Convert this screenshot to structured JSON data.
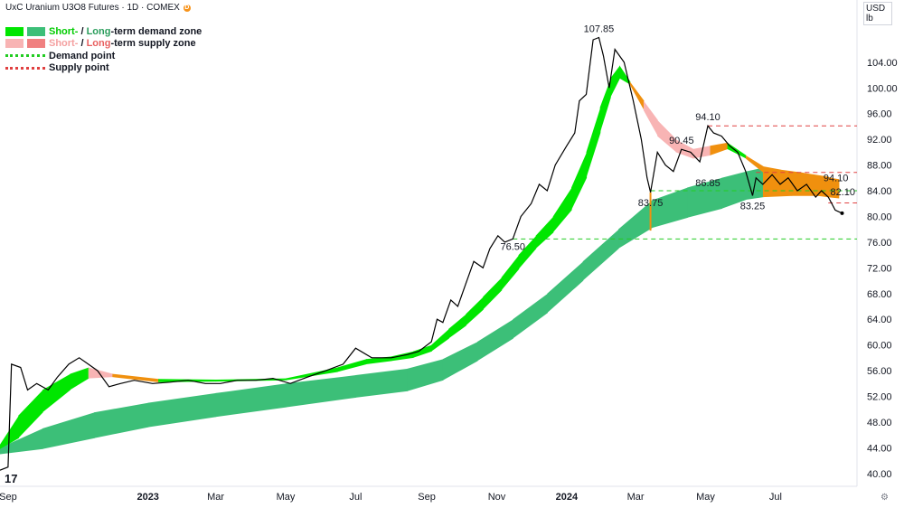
{
  "header": {
    "title": "UxC Uranium U3O8 Futures · 1D · COMEX",
    "badge": "D"
  },
  "currency": {
    "unit": "USD",
    "sub": "lb"
  },
  "legend": {
    "demand_short": "Short-",
    "demand_long": "Long",
    "demand_rest": "-term demand zone",
    "supply_short": "Short-",
    "supply_long": "Long",
    "supply_rest": "-term supply zone",
    "demand_point": "Demand point",
    "supply_point": "Supply point",
    "sep": " / "
  },
  "colors": {
    "short_demand": "#00e600",
    "long_demand": "#3cbf78",
    "short_supply": "#f8b4b4",
    "long_supply": "#f08080",
    "transition": "#f0900e",
    "price_line": "#000000",
    "demand_dash": "#22cc22",
    "supply_dash": "#e04040"
  },
  "logo": "17",
  "chart_data": {
    "type": "line",
    "title": "UxC Uranium U3O8 Futures · 1D · COMEX",
    "y_unit": "USD/lb",
    "ylim": [
      38,
      112
    ],
    "yticks": [
      40,
      44,
      48,
      52,
      56,
      60,
      64,
      68,
      72,
      76,
      80,
      84,
      88,
      92,
      96,
      100,
      104
    ],
    "ytick_labels": [
      "40.00",
      "44.00",
      "48.00",
      "52.00",
      "56.00",
      "60.00",
      "64.00",
      "68.00",
      "72.00",
      "76.00",
      "80.00",
      "84.00",
      "88.00",
      "92.00",
      "96.00",
      "100.00",
      "104.00"
    ],
    "xlim": [
      "2022-08-25",
      "2024-09-10"
    ],
    "xticks": [
      "2022-09-01",
      "2023-01-01",
      "2023-03-01",
      "2023-05-01",
      "2023-07-01",
      "2023-09-01",
      "2023-11-01",
      "2024-01-01",
      "2024-03-01",
      "2024-05-01",
      "2024-07-01"
    ],
    "xtick_labels": [
      "Sep",
      "2023",
      "Mar",
      "May",
      "Jul",
      "Sep",
      "Nov",
      "2024",
      "Mar",
      "May",
      "Jul"
    ],
    "series": [
      {
        "role": "price",
        "x": [
          "2022-08-25",
          "2022-09-01",
          "2022-09-04",
          "2022-09-12",
          "2022-09-18",
          "2022-09-26",
          "2022-10-06",
          "2022-10-14",
          "2022-10-24",
          "2022-11-02",
          "2022-11-10",
          "2022-11-18",
          "2022-11-28",
          "2022-12-08",
          "2022-12-20",
          "2023-01-05",
          "2023-01-20",
          "2023-02-05",
          "2023-02-20",
          "2023-03-05",
          "2023-03-20",
          "2023-04-05",
          "2023-04-20",
          "2023-05-05",
          "2023-05-20",
          "2023-06-05",
          "2023-06-20",
          "2023-07-01",
          "2023-07-15",
          "2023-08-01",
          "2023-08-15",
          "2023-08-25",
          "2023-09-05",
          "2023-09-10",
          "2023-09-15",
          "2023-09-22",
          "2023-09-28",
          "2023-10-05",
          "2023-10-12",
          "2023-10-20",
          "2023-10-26",
          "2023-11-02",
          "2023-11-08",
          "2023-11-15",
          "2023-11-22",
          "2023-12-01",
          "2023-12-08",
          "2023-12-15",
          "2023-12-22",
          "2024-01-01",
          "2024-01-08",
          "2024-01-12",
          "2024-01-18",
          "2024-01-24",
          "2024-01-29",
          "2024-02-02",
          "2024-02-07",
          "2024-02-12",
          "2024-02-20",
          "2024-02-28",
          "2024-03-06",
          "2024-03-11",
          "2024-03-14",
          "2024-03-20",
          "2024-03-27",
          "2024-04-03",
          "2024-04-10",
          "2024-04-18",
          "2024-04-26",
          "2024-05-03",
          "2024-05-08",
          "2024-05-15",
          "2024-05-22",
          "2024-05-29",
          "2024-06-05",
          "2024-06-11",
          "2024-06-14",
          "2024-06-20",
          "2024-06-28",
          "2024-07-05",
          "2024-07-12",
          "2024-07-20",
          "2024-07-28",
          "2024-08-05",
          "2024-08-10",
          "2024-08-16",
          "2024-08-22",
          "2024-08-28"
        ],
        "y": [
          40.5,
          41.0,
          57.0,
          56.5,
          53.0,
          54.0,
          53.0,
          55.0,
          57.0,
          58.0,
          57.0,
          56.0,
          53.5,
          54.0,
          54.5,
          54.0,
          54.2,
          54.5,
          54.0,
          54.0,
          54.5,
          54.5,
          54.8,
          54.0,
          55.0,
          56.0,
          57.0,
          59.5,
          58.0,
          58.0,
          58.5,
          59.0,
          60.5,
          64.0,
          63.5,
          67.0,
          66.0,
          69.5,
          73.0,
          72.0,
          75.0,
          77.0,
          76.0,
          76.5,
          80.0,
          82.0,
          85.0,
          84.0,
          88.0,
          91.0,
          93.0,
          98.0,
          99.0,
          107.5,
          107.85,
          105.0,
          100.0,
          106.0,
          104.0,
          98.0,
          92.0,
          86.0,
          83.75,
          90.0,
          88.0,
          87.0,
          90.45,
          90.0,
          88.5,
          94.1,
          93.0,
          92.5,
          91.0,
          90.0,
          87.0,
          83.25,
          86.0,
          85.0,
          86.5,
          85.0,
          86.0,
          84.0,
          85.0,
          83.0,
          84.0,
          83.0,
          81.0,
          80.5
        ]
      },
      {
        "role": "short-term zone",
        "x": [
          "2022-08-25",
          "2022-09-10",
          "2022-10-01",
          "2022-10-25",
          "2022-11-10",
          "2022-12-01",
          "2023-01-10",
          "2023-03-01",
          "2023-05-01",
          "2023-06-15",
          "2023-07-10",
          "2023-08-01",
          "2023-08-20",
          "2023-09-05",
          "2023-09-20",
          "2023-10-05",
          "2023-10-20",
          "2023-11-05",
          "2023-11-20",
          "2023-12-05",
          "2023-12-20",
          "2024-01-05",
          "2024-01-18",
          "2024-01-30",
          "2024-02-08",
          "2024-02-16",
          "2024-02-25",
          "2024-03-08",
          "2024-03-20",
          "2024-04-05",
          "2024-04-20",
          "2024-05-05",
          "2024-05-20",
          "2024-06-05",
          "2024-06-20",
          "2024-07-05",
          "2024-07-25",
          "2024-08-15",
          "2024-08-25"
        ],
        "upper": [
          44.5,
          49.0,
          53.0,
          55.5,
          56.5,
          55.5,
          54.7,
          54.6,
          54.8,
          56.5,
          57.8,
          58.2,
          59.0,
          60.0,
          62.5,
          64.8,
          67.5,
          70.5,
          74.0,
          77.0,
          80.0,
          84.5,
          90.0,
          97.0,
          101.5,
          103.5,
          101.0,
          98.0,
          95.0,
          92.0,
          90.5,
          91.0,
          91.5,
          89.5,
          87.8,
          87.3,
          86.8,
          86.2,
          85.7
        ],
        "lower": [
          43.8,
          45.5,
          49.5,
          53.0,
          54.8,
          55.0,
          54.2,
          54.3,
          54.5,
          55.8,
          57.0,
          57.5,
          58.0,
          59.0,
          61.0,
          63.0,
          65.5,
          68.5,
          71.8,
          75.0,
          77.5,
          81.0,
          86.0,
          93.0,
          98.5,
          101.5,
          100.5,
          96.5,
          92.5,
          90.0,
          89.0,
          89.5,
          90.5,
          89.0,
          86.8,
          84.8,
          83.5,
          83.0,
          82.8
        ],
        "zone": [
          "demand",
          "demand",
          "demand",
          "demand",
          "supply",
          "transition",
          "demand",
          "demand",
          "demand",
          "demand",
          "demand",
          "demand",
          "demand",
          "demand",
          "demand",
          "demand",
          "demand",
          "demand",
          "demand",
          "demand",
          "demand",
          "demand",
          "demand",
          "demand",
          "demand",
          "demand",
          "transition",
          "supply",
          "supply",
          "supply",
          "supply",
          "transition",
          "demand",
          "transition",
          "transition",
          "transition",
          "transition",
          "transition",
          "transition"
        ]
      },
      {
        "role": "long-term zone",
        "x": [
          "2022-08-25",
          "2022-10-01",
          "2022-11-15",
          "2023-01-01",
          "2023-03-01",
          "2023-05-01",
          "2023-07-01",
          "2023-08-15",
          "2023-09-15",
          "2023-10-15",
          "2023-11-15",
          "2023-12-15",
          "2024-01-15",
          "2024-02-15",
          "2024-03-15",
          "2024-04-15",
          "2024-05-15",
          "2024-06-05",
          "2024-06-20",
          "2024-07-15",
          "2024-08-10",
          "2024-08-25"
        ],
        "upper": [
          44.0,
          47.0,
          49.5,
          51.0,
          52.5,
          54.0,
          55.3,
          56.3,
          57.8,
          60.5,
          64.0,
          68.0,
          73.0,
          78.0,
          82.5,
          84.5,
          86.0,
          87.0,
          87.6,
          87.0,
          86.2,
          85.8
        ],
        "lower": [
          43.0,
          43.8,
          45.5,
          47.2,
          48.8,
          50.3,
          51.8,
          52.8,
          54.5,
          57.5,
          61.0,
          65.0,
          70.0,
          75.0,
          78.2,
          79.8,
          81.2,
          82.6,
          83.0,
          83.2,
          83.2,
          83.2
        ],
        "zone": [
          "demand",
          "demand",
          "demand",
          "demand",
          "demand",
          "demand",
          "demand",
          "demand",
          "demand",
          "demand",
          "demand",
          "demand",
          "demand",
          "demand",
          "demand",
          "demand",
          "demand",
          "demand",
          "transition",
          "transition",
          "transition",
          "transition"
        ]
      }
    ],
    "annotations": [
      {
        "text": "107.85",
        "x": "2024-01-29",
        "y": 107.85
      },
      {
        "text": "94.10",
        "x": "2024-05-03",
        "y": 94.1
      },
      {
        "text": "90.45",
        "x": "2024-04-10",
        "y": 90.45
      },
      {
        "text": "86.85",
        "x": "2024-05-03",
        "y": 86.85
      },
      {
        "text": "83.75",
        "x": "2024-03-14",
        "y": 83.75
      },
      {
        "text": "83.25",
        "x": "2024-06-11",
        "y": 83.25
      },
      {
        "text": "94.10",
        "x": "2024-08-10",
        "y": 94.1
      },
      {
        "text": "82.10",
        "x": "2024-08-16",
        "y": 82.1
      },
      {
        "text": "76.50",
        "x": "2023-11-15",
        "y": 76.5
      }
    ],
    "levels": [
      {
        "kind": "supply",
        "y": 94.1,
        "from": "2024-05-03"
      },
      {
        "kind": "supply",
        "y": 86.85,
        "from": "2024-06-14"
      },
      {
        "kind": "supply",
        "y": 82.1,
        "from": "2024-08-16"
      },
      {
        "kind": "demand",
        "y": 84.0,
        "from": "2024-03-14"
      },
      {
        "kind": "demand",
        "y": 76.5,
        "from": "2023-11-15"
      }
    ]
  }
}
